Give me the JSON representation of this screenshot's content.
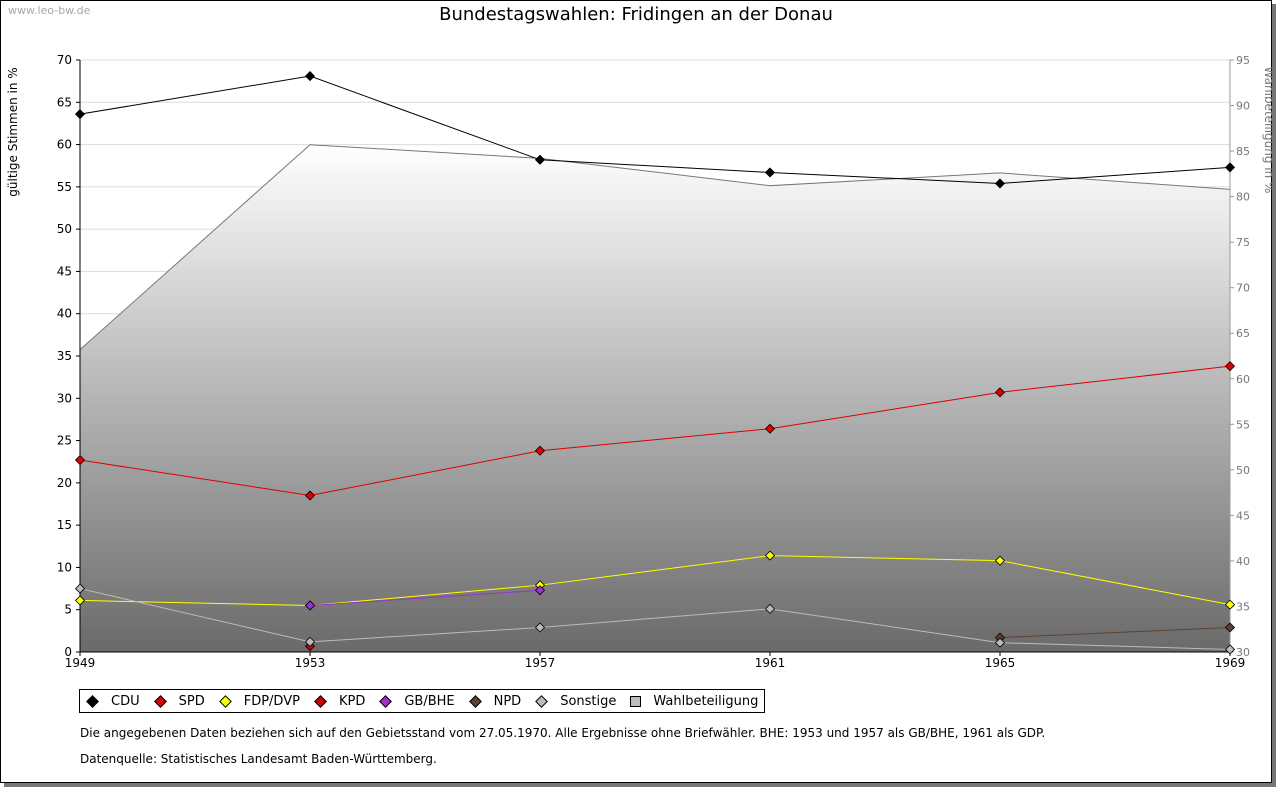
{
  "watermark": "www.leo-bw.de",
  "chart_data": {
    "type": "line",
    "title": "Bundestagswahlen: Fridingen an der Donau",
    "ylabel": "gültige Stimmen in %",
    "y2label": "Wahlbeteiligung in %",
    "ylim": [
      0,
      70
    ],
    "y2lim": [
      30,
      95
    ],
    "x": [
      1949,
      1953,
      1957,
      1961,
      1965,
      1969
    ],
    "yticks": [
      0,
      5,
      10,
      15,
      20,
      25,
      30,
      35,
      40,
      45,
      50,
      55,
      60,
      65,
      70
    ],
    "y2ticks": [
      30,
      35,
      40,
      45,
      50,
      55,
      60,
      65,
      70,
      75,
      80,
      85,
      90,
      95
    ],
    "series": [
      {
        "name": "CDU",
        "color": "#000000",
        "values": [
          63.6,
          68.1,
          58.2,
          56.7,
          55.4,
          57.3
        ]
      },
      {
        "name": "SPD",
        "color": "#dd0000",
        "values": [
          22.7,
          18.5,
          23.8,
          26.4,
          30.7,
          33.8
        ]
      },
      {
        "name": "FDP/DVP",
        "color": "#ffff00",
        "values": [
          6.1,
          5.5,
          7.9,
          11.4,
          10.8,
          5.6
        ]
      },
      {
        "name": "KPD",
        "color": "#cc0000",
        "values": [
          null,
          0.7,
          null,
          null,
          null,
          null
        ]
      },
      {
        "name": "GB/BHE",
        "color": "#9933cc",
        "values": [
          null,
          5.5,
          7.3,
          null,
          null,
          null
        ]
      },
      {
        "name": "NPD",
        "color": "#5c4033",
        "values": [
          null,
          null,
          null,
          null,
          1.7,
          2.9
        ]
      },
      {
        "name": "Sonstige",
        "color": "#bbbbbb",
        "values": [
          7.5,
          1.2,
          2.9,
          5.1,
          1.1,
          0.3
        ]
      }
    ],
    "turnout": {
      "name": "Wahlbeteiligung",
      "color": "#bdbdbd",
      "values": [
        63.2,
        85.7,
        84.2,
        81.2,
        82.6,
        80.8
      ]
    }
  },
  "notes": {
    "line1": "Die angegebenen Daten beziehen sich auf den Gebietsstand vom 27.05.1970. Alle Ergebnisse ohne Briefwähler. BHE: 1953 und 1957 als GB/BHE, 1961 als GDP.",
    "line2": "Datenquelle: Statistisches Landesamt Baden-Württemberg."
  }
}
